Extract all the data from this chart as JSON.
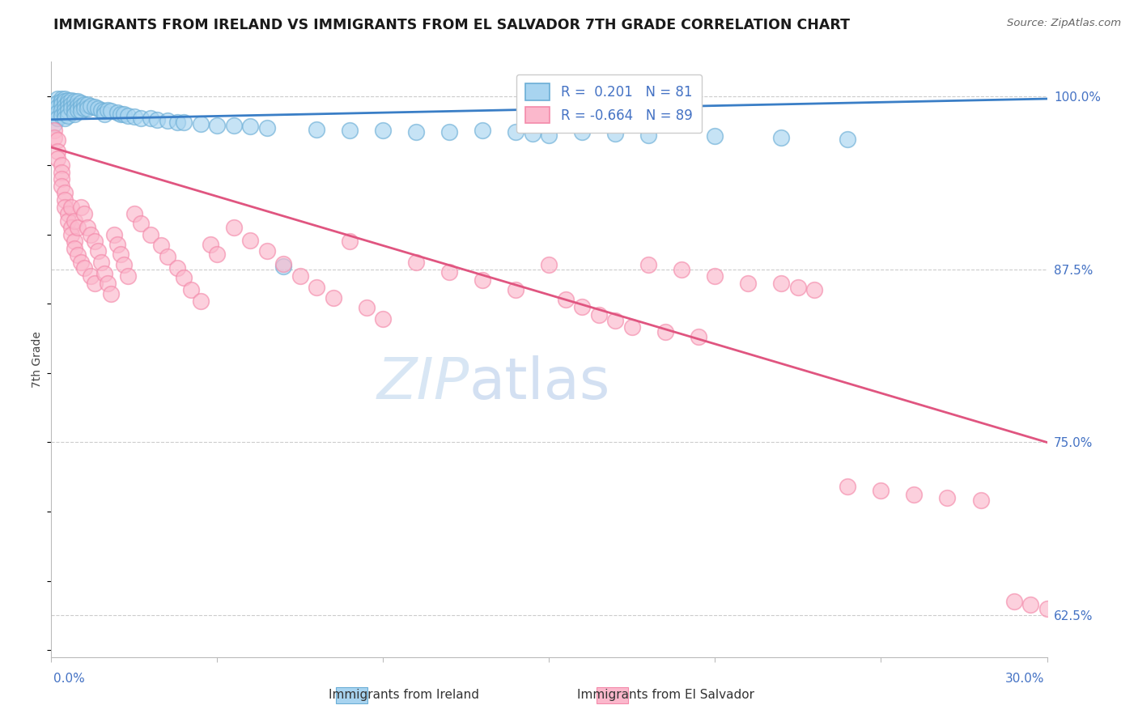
{
  "title": "IMMIGRANTS FROM IRELAND VS IMMIGRANTS FROM EL SALVADOR 7TH GRADE CORRELATION CHART",
  "source": "Source: ZipAtlas.com",
  "ylabel": "7th Grade",
  "legend_ireland": "Immigrants from Ireland",
  "legend_salvador": "Immigrants from El Salvador",
  "R_ireland": "0.201",
  "N_ireland": "81",
  "R_salvador": "-0.664",
  "N_salvador": "89",
  "ireland_color": "#a8d4f0",
  "ireland_edge_color": "#6baed6",
  "salvador_color": "#fbb8cc",
  "salvador_edge_color": "#f48aaa",
  "ireland_line_color": "#3a7ec6",
  "salvador_line_color": "#e05580",
  "background_color": "#ffffff",
  "xlim": [
    0.0,
    0.3
  ],
  "ylim": [
    0.595,
    1.025
  ],
  "yticks": [
    0.625,
    0.75,
    0.875,
    1.0
  ],
  "ytick_labels": [
    "62.5%",
    "75.0%",
    "87.5%",
    "100.0%"
  ],
  "ireland_points_x": [
    0.001,
    0.001,
    0.001,
    0.002,
    0.002,
    0.002,
    0.002,
    0.002,
    0.003,
    0.003,
    0.003,
    0.003,
    0.003,
    0.004,
    0.004,
    0.004,
    0.004,
    0.004,
    0.004,
    0.005,
    0.005,
    0.005,
    0.005,
    0.005,
    0.006,
    0.006,
    0.006,
    0.007,
    0.007,
    0.007,
    0.007,
    0.008,
    0.008,
    0.008,
    0.009,
    0.009,
    0.009,
    0.01,
    0.01,
    0.011,
    0.011,
    0.012,
    0.013,
    0.014,
    0.015,
    0.016,
    0.016,
    0.017,
    0.018,
    0.02,
    0.021,
    0.022,
    0.023,
    0.025,
    0.027,
    0.03,
    0.032,
    0.035,
    0.038,
    0.04,
    0.045,
    0.05,
    0.055,
    0.06,
    0.065,
    0.07,
    0.08,
    0.09,
    0.1,
    0.11,
    0.12,
    0.15,
    0.2,
    0.22,
    0.24,
    0.18,
    0.17,
    0.16,
    0.13,
    0.14,
    0.145
  ],
  "ireland_points_y": [
    0.99,
    0.985,
    0.98,
    0.998,
    0.995,
    0.992,
    0.988,
    0.984,
    0.998,
    0.996,
    0.994,
    0.99,
    0.986,
    0.998,
    0.996,
    0.993,
    0.99,
    0.987,
    0.984,
    0.997,
    0.995,
    0.992,
    0.989,
    0.986,
    0.997,
    0.994,
    0.991,
    0.996,
    0.993,
    0.99,
    0.987,
    0.996,
    0.993,
    0.99,
    0.995,
    0.992,
    0.989,
    0.994,
    0.991,
    0.994,
    0.991,
    0.993,
    0.992,
    0.991,
    0.99,
    0.989,
    0.987,
    0.99,
    0.989,
    0.988,
    0.987,
    0.987,
    0.986,
    0.985,
    0.984,
    0.984,
    0.983,
    0.982,
    0.981,
    0.981,
    0.98,
    0.979,
    0.979,
    0.978,
    0.977,
    0.877,
    0.976,
    0.975,
    0.975,
    0.974,
    0.974,
    0.972,
    0.971,
    0.97,
    0.969,
    0.972,
    0.973,
    0.974,
    0.975,
    0.974,
    0.973
  ],
  "salvador_points_x": [
    0.001,
    0.001,
    0.002,
    0.002,
    0.002,
    0.003,
    0.003,
    0.003,
    0.003,
    0.004,
    0.004,
    0.004,
    0.005,
    0.005,
    0.006,
    0.006,
    0.006,
    0.007,
    0.007,
    0.007,
    0.008,
    0.008,
    0.009,
    0.009,
    0.01,
    0.01,
    0.011,
    0.012,
    0.012,
    0.013,
    0.013,
    0.014,
    0.015,
    0.016,
    0.017,
    0.018,
    0.019,
    0.02,
    0.021,
    0.022,
    0.023,
    0.025,
    0.027,
    0.03,
    0.033,
    0.035,
    0.038,
    0.04,
    0.042,
    0.045,
    0.048,
    0.05,
    0.055,
    0.06,
    0.065,
    0.07,
    0.075,
    0.08,
    0.085,
    0.09,
    0.095,
    0.1,
    0.11,
    0.12,
    0.13,
    0.14,
    0.15,
    0.155,
    0.16,
    0.165,
    0.17,
    0.175,
    0.18,
    0.185,
    0.19,
    0.195,
    0.2,
    0.21,
    0.22,
    0.225,
    0.23,
    0.24,
    0.25,
    0.26,
    0.27,
    0.28,
    0.29,
    0.295,
    0.3
  ],
  "salvador_points_y": [
    0.975,
    0.97,
    0.968,
    0.96,
    0.955,
    0.95,
    0.945,
    0.94,
    0.935,
    0.93,
    0.925,
    0.92,
    0.915,
    0.91,
    0.905,
    0.9,
    0.92,
    0.895,
    0.91,
    0.89,
    0.905,
    0.885,
    0.92,
    0.88,
    0.915,
    0.876,
    0.905,
    0.9,
    0.87,
    0.895,
    0.865,
    0.888,
    0.88,
    0.872,
    0.865,
    0.857,
    0.9,
    0.893,
    0.886,
    0.878,
    0.87,
    0.915,
    0.908,
    0.9,
    0.892,
    0.884,
    0.876,
    0.869,
    0.86,
    0.852,
    0.893,
    0.886,
    0.905,
    0.896,
    0.888,
    0.879,
    0.87,
    0.862,
    0.854,
    0.895,
    0.847,
    0.839,
    0.88,
    0.873,
    0.867,
    0.86,
    0.878,
    0.853,
    0.848,
    0.842,
    0.838,
    0.833,
    0.878,
    0.83,
    0.875,
    0.826,
    0.87,
    0.865,
    0.865,
    0.862,
    0.86,
    0.718,
    0.715,
    0.712,
    0.71,
    0.708,
    0.635,
    0.633,
    0.63
  ],
  "ireland_line_x": [
    0.0,
    0.3
  ],
  "ireland_line_y": [
    0.983,
    0.998
  ],
  "salvador_line_x": [
    0.0,
    0.3
  ],
  "salvador_line_y": [
    0.963,
    0.75
  ]
}
